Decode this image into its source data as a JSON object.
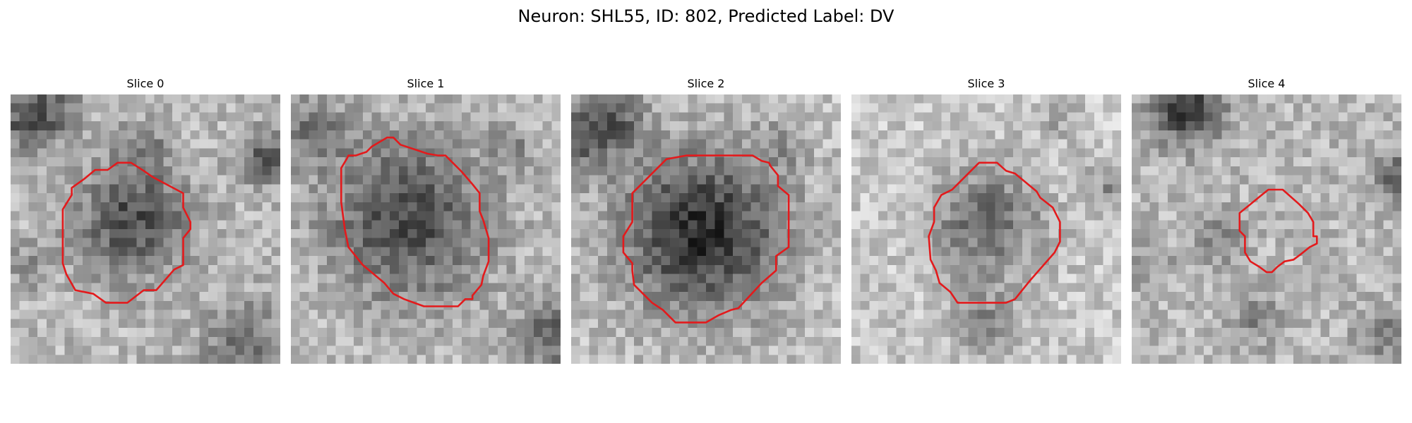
{
  "figure": {
    "title": "Neuron: SHL55, ID: 802, Predicted Label: DV",
    "contour_color": "#e31a1c"
  },
  "panels": [
    {
      "title": "Slice 0",
      "image": "grayscale-microscopy-patch",
      "overlay": "red-contour-octagon"
    },
    {
      "title": "Slice 1",
      "image": "grayscale-microscopy-patch",
      "overlay": "red-contour-octagon"
    },
    {
      "title": "Slice 2",
      "image": "grayscale-microscopy-patch",
      "overlay": "red-contour-octagon"
    },
    {
      "title": "Slice 3",
      "image": "grayscale-microscopy-patch",
      "overlay": "red-contour-octagon"
    },
    {
      "title": "Slice 4",
      "image": "grayscale-microscopy-patch",
      "overlay": "red-contour-octagon"
    }
  ]
}
